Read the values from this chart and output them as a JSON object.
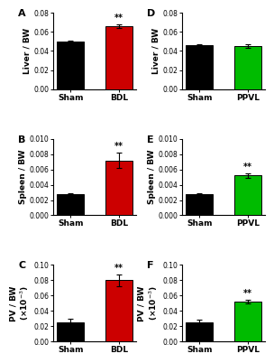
{
  "panels": [
    {
      "label": "A",
      "ylabel": "Liver / BW",
      "categories": [
        "Sham",
        "BDL"
      ],
      "values": [
        0.05,
        0.066
      ],
      "errors": [
        0.001,
        0.002
      ],
      "colors": [
        "#000000",
        "#cc0000"
      ],
      "ylim": [
        0,
        0.08
      ],
      "yticks": [
        0.0,
        0.02,
        0.04,
        0.06,
        0.08
      ],
      "yticklabels": [
        "0.00",
        "0.02",
        "0.04",
        "0.06",
        "0.08"
      ],
      "sig": [
        false,
        true
      ],
      "sig_text": "**",
      "col": 0,
      "row": 0
    },
    {
      "label": "B",
      "ylabel": "Spleen / BW",
      "categories": [
        "Sham",
        "BDL"
      ],
      "values": [
        0.0028,
        0.0072
      ],
      "errors": [
        0.0001,
        0.001
      ],
      "colors": [
        "#000000",
        "#cc0000"
      ],
      "ylim": [
        0,
        0.01
      ],
      "yticks": [
        0.0,
        0.002,
        0.004,
        0.006,
        0.008,
        0.01
      ],
      "yticklabels": [
        "0.000",
        "0.002",
        "0.004",
        "0.006",
        "0.008",
        "0.010"
      ],
      "sig": [
        false,
        true
      ],
      "sig_text": "**",
      "col": 0,
      "row": 1
    },
    {
      "label": "C",
      "ylabel": "PV / BW (x10-3)",
      "categories": [
        "Sham",
        "BDL"
      ],
      "values": [
        0.025,
        0.08
      ],
      "errors": [
        0.005,
        0.008
      ],
      "colors": [
        "#000000",
        "#cc0000"
      ],
      "ylim": [
        0,
        0.1
      ],
      "yticks": [
        0.0,
        0.02,
        0.04,
        0.06,
        0.08,
        0.1
      ],
      "yticklabels": [
        "0.00",
        "0.02",
        "0.04",
        "0.06",
        "0.08",
        "0.10"
      ],
      "sig": [
        false,
        true
      ],
      "sig_text": "**",
      "col": 0,
      "row": 2
    },
    {
      "label": "D",
      "ylabel": "Liver / BW",
      "categories": [
        "Sham",
        "PPVL"
      ],
      "values": [
        0.046,
        0.045
      ],
      "errors": [
        0.001,
        0.002
      ],
      "colors": [
        "#000000",
        "#00bb00"
      ],
      "ylim": [
        0,
        0.08
      ],
      "yticks": [
        0.0,
        0.02,
        0.04,
        0.06,
        0.08
      ],
      "yticklabels": [
        "0.00",
        "0.02",
        "0.04",
        "0.06",
        "0.08"
      ],
      "sig": [
        false,
        false
      ],
      "sig_text": "",
      "col": 1,
      "row": 0
    },
    {
      "label": "E",
      "ylabel": "Spleen / BW",
      "categories": [
        "Sham",
        "PPVL"
      ],
      "values": [
        0.0028,
        0.0052
      ],
      "errors": [
        0.0001,
        0.0003
      ],
      "colors": [
        "#000000",
        "#00bb00"
      ],
      "ylim": [
        0,
        0.01
      ],
      "yticks": [
        0.0,
        0.002,
        0.004,
        0.006,
        0.008,
        0.01
      ],
      "yticklabels": [
        "0.000",
        "0.002",
        "0.004",
        "0.006",
        "0.008",
        "0.010"
      ],
      "sig": [
        false,
        true
      ],
      "sig_text": "**",
      "col": 1,
      "row": 1
    },
    {
      "label": "F",
      "ylabel": "PV / BW (x10-3)",
      "categories": [
        "Sham",
        "PPVL"
      ],
      "values": [
        0.025,
        0.052
      ],
      "errors": [
        0.004,
        0.002
      ],
      "colors": [
        "#000000",
        "#00bb00"
      ],
      "ylim": [
        0,
        0.1
      ],
      "yticks": [
        0.0,
        0.02,
        0.04,
        0.06,
        0.08,
        0.1
      ],
      "yticklabels": [
        "0.00",
        "0.02",
        "0.04",
        "0.06",
        "0.08",
        "0.10"
      ],
      "sig": [
        false,
        true
      ],
      "sig_text": "**",
      "col": 1,
      "row": 2
    }
  ],
  "bg_color": "#ffffff",
  "bar_width": 0.55,
  "label_fontsize": 6.5,
  "tick_fontsize": 5.5,
  "panel_label_fontsize": 8,
  "sig_fontsize": 7
}
